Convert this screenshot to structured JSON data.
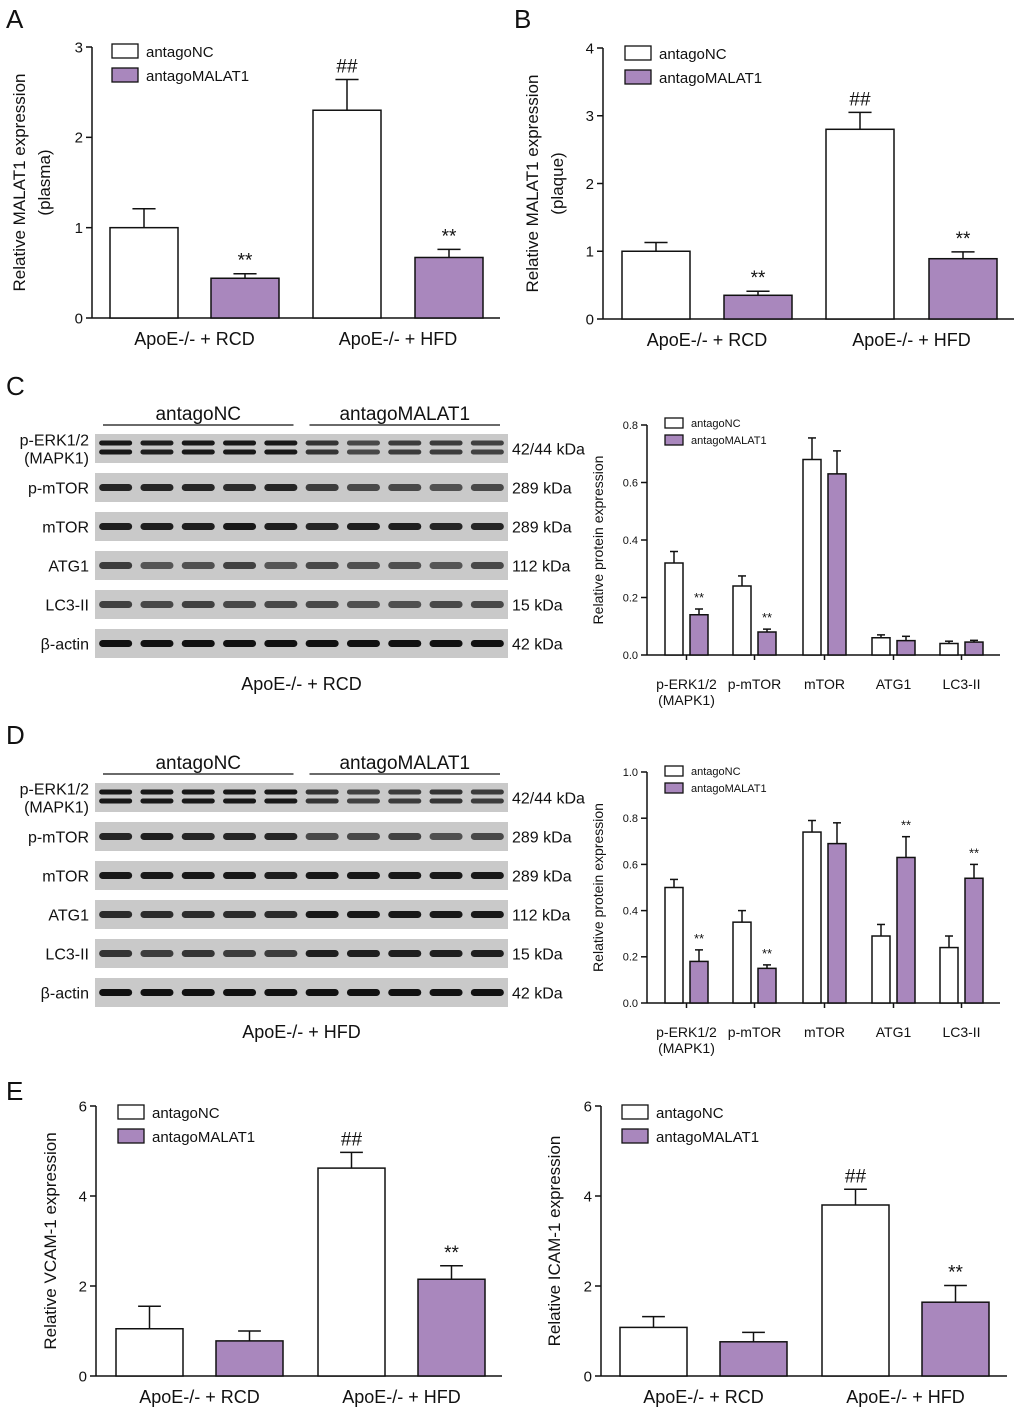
{
  "colors": {
    "antagoNC": "#ffffff",
    "antagoMALAT1": "#a987bd",
    "axis": "#111111"
  },
  "legend": [
    "antagoNC",
    "antagoMALAT1"
  ],
  "panel_labels": [
    "A",
    "B",
    "C",
    "D",
    "E"
  ],
  "chart_data": [
    {
      "id": "A",
      "type": "bar",
      "ylabel": [
        "Relative MALAT1 expression",
        "(plasma)"
      ],
      "categories": [
        "ApoE-/- + RCD",
        "ApoE-/- + HFD"
      ],
      "ylim": [
        0,
        3
      ],
      "yticks": [
        0,
        1,
        2,
        3
      ],
      "series": [
        {
          "name": "antagoNC",
          "values": [
            1.0,
            2.3
          ],
          "errors": [
            0.21,
            0.34
          ],
          "marks": [
            "",
            "##"
          ]
        },
        {
          "name": "antagoMALAT1",
          "values": [
            0.44,
            0.67
          ],
          "errors": [
            0.05,
            0.09
          ],
          "marks": [
            "**",
            "**"
          ]
        }
      ]
    },
    {
      "id": "B",
      "type": "bar",
      "ylabel": [
        "Relative MALAT1 expression",
        "(plaque)"
      ],
      "categories": [
        "ApoE-/- + RCD",
        "ApoE-/- + HFD"
      ],
      "ylim": [
        0,
        4
      ],
      "yticks": [
        0,
        1,
        2,
        3,
        4
      ],
      "series": [
        {
          "name": "antagoNC",
          "values": [
            1.0,
            2.8
          ],
          "errors": [
            0.13,
            0.25
          ],
          "marks": [
            "",
            "##"
          ]
        },
        {
          "name": "antagoMALAT1",
          "values": [
            0.35,
            0.89
          ],
          "errors": [
            0.06,
            0.1
          ],
          "marks": [
            "**",
            "**"
          ]
        }
      ]
    },
    {
      "id": "C-bar",
      "type": "bar",
      "ylabel": [
        "Relative protein expression"
      ],
      "categories": [
        "p-ERK1/2\n(MAPK1)",
        "p-mTOR",
        "mTOR",
        "ATG1",
        "LC3-II"
      ],
      "ylim": [
        0,
        0.8
      ],
      "yticks": [
        0.0,
        0.2,
        0.4,
        0.6,
        0.8
      ],
      "series": [
        {
          "name": "antagoNC",
          "values": [
            0.32,
            0.24,
            0.68,
            0.06,
            0.04
          ],
          "errors": [
            0.04,
            0.035,
            0.075,
            0.01,
            0.008
          ],
          "marks": [
            "",
            "",
            "",
            "",
            ""
          ]
        },
        {
          "name": "antagoMALAT1",
          "values": [
            0.14,
            0.08,
            0.63,
            0.05,
            0.045
          ],
          "errors": [
            0.02,
            0.01,
            0.08,
            0.015,
            0.006
          ],
          "marks": [
            "**",
            "**",
            "",
            "",
            ""
          ]
        }
      ]
    },
    {
      "id": "D-bar",
      "type": "bar",
      "ylabel": [
        "Relative protein expression"
      ],
      "categories": [
        "p-ERK1/2\n(MAPK1)",
        "p-mTOR",
        "mTOR",
        "ATG1",
        "LC3-II"
      ],
      "ylim": [
        0,
        1.0
      ],
      "yticks": [
        0.0,
        0.2,
        0.4,
        0.6,
        0.8,
        1.0
      ],
      "series": [
        {
          "name": "antagoNC",
          "values": [
            0.5,
            0.35,
            0.74,
            0.29,
            0.24
          ],
          "errors": [
            0.035,
            0.05,
            0.05,
            0.05,
            0.05
          ],
          "marks": [
            "",
            "",
            "",
            "",
            ""
          ]
        },
        {
          "name": "antagoMALAT1",
          "values": [
            0.18,
            0.15,
            0.69,
            0.63,
            0.54
          ],
          "errors": [
            0.05,
            0.015,
            0.09,
            0.09,
            0.06
          ],
          "marks": [
            "**",
            "**",
            "",
            "**",
            "**"
          ]
        }
      ]
    },
    {
      "id": "E-left",
      "type": "bar",
      "ylabel": [
        "Relative VCAM-1 expression"
      ],
      "categories": [
        "ApoE-/- + RCD",
        "ApoE-/- + HFD"
      ],
      "ylim": [
        0,
        6
      ],
      "yticks": [
        0,
        2,
        4,
        6
      ],
      "series": [
        {
          "name": "antagoNC",
          "values": [
            1.05,
            4.62
          ],
          "errors": [
            0.5,
            0.35
          ],
          "marks": [
            "",
            "##"
          ]
        },
        {
          "name": "antagoMALAT1",
          "values": [
            0.78,
            2.15
          ],
          "errors": [
            0.22,
            0.3
          ],
          "marks": [
            "",
            "**"
          ]
        }
      ]
    },
    {
      "id": "E-right",
      "type": "bar",
      "ylabel": [
        "Relative ICAM-1 expression"
      ],
      "categories": [
        "ApoE-/- + RCD",
        "ApoE-/- + HFD"
      ],
      "ylim": [
        0,
        6
      ],
      "yticks": [
        0,
        2,
        4,
        6
      ],
      "series": [
        {
          "name": "antagoNC",
          "values": [
            1.08,
            3.8
          ],
          "errors": [
            0.24,
            0.35
          ],
          "marks": [
            "",
            "##"
          ]
        },
        {
          "name": "antagoMALAT1",
          "values": [
            0.76,
            1.64
          ],
          "errors": [
            0.21,
            0.37
          ],
          "marks": [
            "",
            "**"
          ]
        }
      ]
    }
  ],
  "blots": [
    {
      "id": "C-blot",
      "group_labels": [
        "antagoNC",
        "antagoMALAT1"
      ],
      "caption": "ApoE-/- + RCD",
      "rows": [
        {
          "protein": "p-ERK1/2\n(MAPK1)",
          "size": "42/44 kDa",
          "doublet": true,
          "intensity": [
            0.95,
            0.9,
            0.95,
            0.95,
            0.95,
            0.75,
            0.6,
            0.7,
            0.7,
            0.65
          ]
        },
        {
          "protein": "p-mTOR",
          "size": "289 kDa",
          "doublet": false,
          "intensity": [
            0.85,
            0.85,
            0.85,
            0.8,
            0.85,
            0.7,
            0.6,
            0.6,
            0.55,
            0.6
          ]
        },
        {
          "protein": "mTOR",
          "size": "289 kDa",
          "doublet": false,
          "intensity": [
            0.9,
            0.9,
            0.9,
            0.95,
            0.9,
            0.85,
            0.9,
            0.9,
            0.85,
            0.85
          ]
        },
        {
          "protein": "ATG1",
          "size": "112 kDa",
          "doublet": false,
          "intensity": [
            0.7,
            0.5,
            0.55,
            0.65,
            0.5,
            0.6,
            0.55,
            0.55,
            0.5,
            0.6
          ]
        },
        {
          "protein": "LC3-II",
          "size": "15 kDa",
          "doublet": false,
          "intensity": [
            0.65,
            0.6,
            0.65,
            0.6,
            0.6,
            0.6,
            0.55,
            0.55,
            0.6,
            0.6
          ]
        },
        {
          "protein": "β-actin",
          "size": "42 kDa",
          "doublet": false,
          "intensity": [
            1,
            1,
            1,
            1,
            1,
            1,
            1,
            1,
            1,
            1
          ]
        }
      ]
    },
    {
      "id": "D-blot",
      "group_labels": [
        "antagoNC",
        "antagoMALAT1"
      ],
      "caption": "ApoE-/- + HFD",
      "rows": [
        {
          "protein": "p-ERK1/2\n(MAPK1)",
          "size": "42/44 kDa",
          "doublet": true,
          "intensity": [
            0.95,
            0.95,
            0.95,
            0.95,
            0.95,
            0.75,
            0.65,
            0.7,
            0.75,
            0.7
          ]
        },
        {
          "protein": "p-mTOR",
          "size": "289 kDa",
          "doublet": false,
          "intensity": [
            0.85,
            0.9,
            0.85,
            0.85,
            0.85,
            0.6,
            0.6,
            0.65,
            0.55,
            0.6
          ]
        },
        {
          "protein": "mTOR",
          "size": "289 kDa",
          "doublet": false,
          "intensity": [
            0.95,
            0.95,
            0.95,
            0.95,
            0.9,
            0.95,
            0.95,
            0.95,
            0.95,
            0.95
          ]
        },
        {
          "protein": "ATG1",
          "size": "112 kDa",
          "doublet": false,
          "intensity": [
            0.8,
            0.8,
            0.8,
            0.8,
            0.8,
            0.95,
            0.95,
            0.95,
            0.95,
            0.95
          ]
        },
        {
          "protein": "LC3-II",
          "size": "15 kDa",
          "doublet": false,
          "intensity": [
            0.75,
            0.7,
            0.75,
            0.7,
            0.7,
            0.9,
            0.9,
            0.9,
            0.9,
            0.9
          ]
        },
        {
          "protein": "β-actin",
          "size": "42 kDa",
          "doublet": false,
          "intensity": [
            1,
            1,
            1,
            1,
            1,
            1,
            1,
            1,
            1,
            1
          ]
        }
      ]
    }
  ]
}
